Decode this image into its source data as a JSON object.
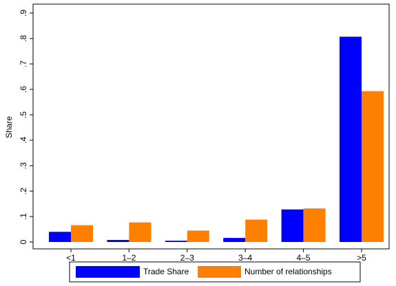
{
  "chart_data": {
    "type": "bar",
    "y_label": "Share",
    "categories": [
      "<1",
      "1–2",
      "2–3",
      "3–4",
      "4–5",
      ">5"
    ],
    "series": [
      {
        "name": "Trade Share",
        "color": "#0000ff",
        "values": [
          0.04,
          0.008,
          0.005,
          0.016,
          0.128,
          0.807
        ]
      },
      {
        "name": "Number of relationships",
        "color": "#ff7f00",
        "values": [
          0.066,
          0.077,
          0.045,
          0.088,
          0.132,
          0.593
        ]
      }
    ],
    "ylim": [
      0,
      0.9
    ],
    "yticks": [
      0,
      {
        "value": 0.1,
        "label": ".1"
      },
      {
        "value": 0.2,
        "label": ".2"
      },
      {
        "value": 0.3,
        "label": ".3"
      },
      {
        "value": 0.4,
        "label": ".4"
      },
      {
        "value": 0.5,
        "label": ".5"
      },
      {
        "value": 0.6,
        "label": ".6"
      },
      {
        "value": 0.7,
        "label": ".7"
      },
      {
        "value": 0.8,
        "label": ".8"
      },
      {
        "value": 0.9,
        "label": ".9"
      }
    ],
    "grid": false,
    "legend": "bottom"
  }
}
